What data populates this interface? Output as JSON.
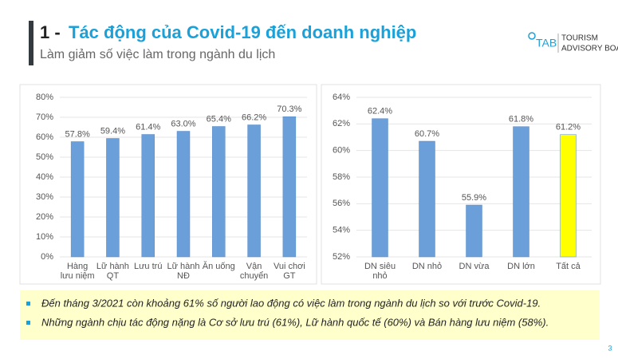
{
  "header": {
    "number": "1 -",
    "title": "Tác động của Covid-19 đến doanh nghiệp",
    "subtitle": "Làm giảm số việc làm trong ngành du lịch"
  },
  "logo": {
    "mark": "TAB",
    "line1": "TOURISM",
    "line2": "ADVISORY BOARD"
  },
  "chart_data": [
    {
      "type": "bar",
      "categories": [
        "Hàng\nlưu niệm",
        "Lữ hành\nQT",
        "Lưu trú",
        "Lữ hành\nNĐ",
        "Ăn uống",
        "Vận\nchuyển",
        "Vui chơi\nGT"
      ],
      "values": [
        57.8,
        59.4,
        61.4,
        63.0,
        65.4,
        66.2,
        70.3
      ],
      "value_labels": [
        "57.8%",
        "59.4%",
        "61.4%",
        "63.0%",
        "65.4%",
        "66.2%",
        "70.3%"
      ],
      "colors": [
        "#6b9fd9",
        "#6b9fd9",
        "#6b9fd9",
        "#6b9fd9",
        "#6b9fd9",
        "#6b9fd9",
        "#6b9fd9"
      ],
      "ylim": [
        0,
        80
      ],
      "yticks": [
        {
          "value": 0,
          "label": "0%"
        },
        {
          "value": 10,
          "label": "10%"
        },
        {
          "value": 20,
          "label": "20%"
        },
        {
          "value": 30,
          "label": "30%"
        },
        {
          "value": 40,
          "label": "40%"
        },
        {
          "value": 50,
          "label": "50%"
        },
        {
          "value": 60,
          "label": "60%"
        },
        {
          "value": 70,
          "label": "70%"
        },
        {
          "value": 80,
          "label": "80%"
        }
      ],
      "grid": true
    },
    {
      "type": "bar",
      "categories": [
        "DN siêu\nnhỏ",
        "DN nhỏ",
        "DN vừa",
        "DN lớn",
        "Tất cả"
      ],
      "values": [
        62.4,
        60.7,
        55.9,
        61.8,
        61.2
      ],
      "value_labels": [
        "62.4%",
        "60.7%",
        "55.9%",
        "61.8%",
        "61.2%"
      ],
      "colors": [
        "#6b9fd9",
        "#6b9fd9",
        "#6b9fd9",
        "#6b9fd9",
        "#ffff00"
      ],
      "ylim": [
        52,
        64
      ],
      "yticks": [
        {
          "value": 52,
          "label": "52%"
        },
        {
          "value": 54,
          "label": "54%"
        },
        {
          "value": 56,
          "label": "56%"
        },
        {
          "value": 58,
          "label": "58%"
        },
        {
          "value": 60,
          "label": "60%"
        },
        {
          "value": 62,
          "label": "62%"
        },
        {
          "value": 64,
          "label": "64%"
        }
      ],
      "grid": true
    }
  ],
  "notes": [
    "Đến tháng 3/2021 còn khoảng 61% số người lao động có việc làm trong ngành du lịch so với trước Covid-19.",
    "Những ngành chịu tác động nặng là Cơ sở lưu trú (61%), Lữ hành quốc tế (60%) và Bán hàng lưu niệm (58%)."
  ],
  "page_number": "3"
}
